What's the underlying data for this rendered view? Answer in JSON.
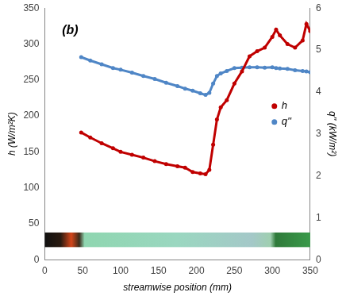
{
  "chart_data": {
    "type": "line",
    "title": "(b)",
    "x_label": "streamwise position (mm)",
    "y_label": "h (W/m²K)",
    "y2_label": "q'' (kW/m²)",
    "x": [
      48,
      60,
      75,
      90,
      100,
      115,
      130,
      145,
      160,
      175,
      185,
      195,
      205,
      212,
      217,
      222,
      227,
      232,
      240,
      250,
      260,
      270,
      280,
      290,
      300,
      305,
      310,
      320,
      330,
      340,
      345,
      350
    ],
    "series": [
      {
        "name": "h",
        "color": "#c00000",
        "marker": "circle",
        "axis": "y",
        "values": [
          177,
          170,
          162,
          155,
          150,
          146,
          142,
          137,
          133,
          130,
          128,
          122,
          120,
          119,
          125,
          160,
          195,
          212,
          222,
          245,
          262,
          283,
          290,
          295,
          310,
          320,
          312,
          300,
          295,
          305,
          328,
          318
        ]
      },
      {
        "name": "q''",
        "color": "#4f86c6",
        "marker": "circle",
        "axis": "y2",
        "values": [
          4.83,
          4.75,
          4.66,
          4.57,
          4.53,
          4.46,
          4.38,
          4.31,
          4.22,
          4.14,
          4.08,
          4.03,
          3.97,
          3.93,
          3.98,
          4.2,
          4.38,
          4.44,
          4.5,
          4.57,
          4.58,
          4.59,
          4.59,
          4.58,
          4.59,
          4.57,
          4.56,
          4.55,
          4.52,
          4.5,
          4.49,
          4.47
        ]
      }
    ],
    "xlim": [
      0,
      350
    ],
    "xticks": [
      0,
      50,
      100,
      150,
      200,
      250,
      300,
      350
    ],
    "ylim": [
      0,
      350
    ],
    "yticks": [
      0,
      50,
      100,
      150,
      200,
      250,
      300,
      350
    ],
    "y2lim": [
      0,
      6
    ],
    "y2ticks": [
      0,
      1,
      2,
      3,
      4,
      5,
      6
    ],
    "grid": false,
    "legend": "right"
  }
}
